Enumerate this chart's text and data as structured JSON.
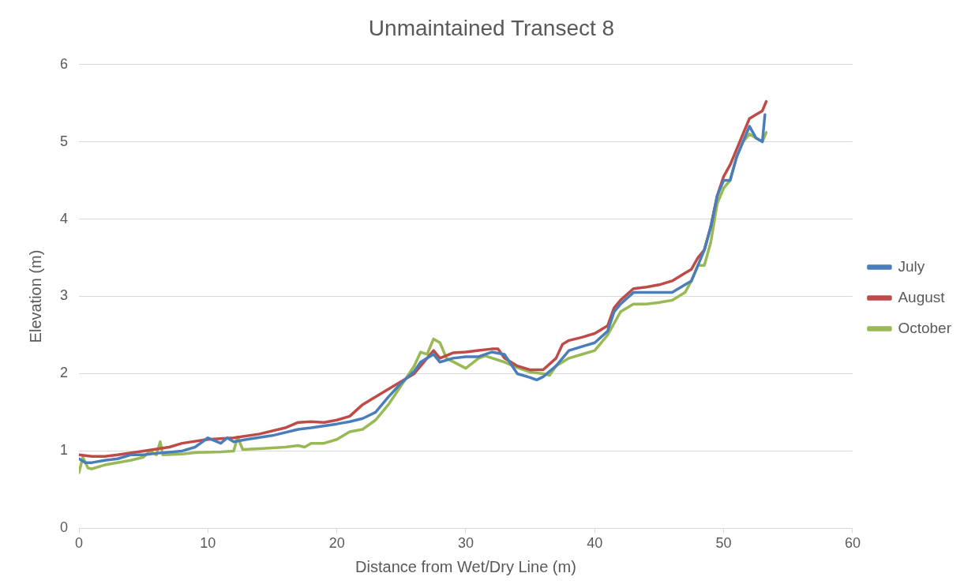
{
  "chart_data": {
    "type": "line",
    "title": "Unmaintained Transect 8",
    "xlabel": "Distance from Wet/Dry Line (m)",
    "ylabel": "Elevation (m)",
    "xlim": [
      0,
      60
    ],
    "xticks": [
      0,
      10,
      20,
      30,
      40,
      50,
      60
    ],
    "ylim": [
      0,
      6
    ],
    "yticks": [
      0,
      1,
      2,
      3,
      4,
      5,
      6
    ],
    "grid": "y",
    "legend": "right",
    "marker": "none",
    "line_style": "solid",
    "series": [
      {
        "name": "July",
        "color": "#4a7ebb",
        "x": [
          0,
          0.5,
          1,
          2,
          3,
          4,
          5,
          6,
          8,
          9,
          10,
          11,
          11.5,
          12,
          13,
          15,
          17,
          18,
          20,
          21,
          22,
          23,
          24,
          25,
          26,
          26.5,
          27,
          27.5,
          28,
          29,
          30,
          31,
          32,
          33,
          34,
          35,
          35.5,
          36,
          37,
          38,
          39,
          40,
          41,
          41.5,
          42,
          43,
          44,
          45,
          46,
          47,
          47.5,
          48,
          48.5,
          49,
          49.5,
          50,
          50.5,
          51,
          51.5,
          52,
          52.5,
          53,
          53.2
        ],
        "values": [
          0.9,
          0.85,
          0.85,
          0.88,
          0.9,
          0.95,
          0.95,
          0.97,
          1.0,
          1.05,
          1.17,
          1.1,
          1.17,
          1.12,
          1.15,
          1.2,
          1.28,
          1.3,
          1.35,
          1.38,
          1.42,
          1.5,
          1.7,
          1.88,
          2.03,
          2.15,
          2.2,
          2.25,
          2.15,
          2.2,
          2.22,
          2.22,
          2.28,
          2.25,
          2.0,
          1.95,
          1.92,
          1.96,
          2.1,
          2.3,
          2.35,
          2.4,
          2.55,
          2.8,
          2.9,
          3.05,
          3.05,
          3.05,
          3.05,
          3.15,
          3.2,
          3.4,
          3.6,
          3.9,
          4.3,
          4.5,
          4.5,
          4.8,
          5.0,
          5.2,
          5.05,
          5.0,
          5.35
        ]
      },
      {
        "name": "August",
        "color": "#be4b48",
        "x": [
          0,
          1,
          2,
          3,
          5,
          7,
          8,
          10,
          12,
          14,
          16,
          17,
          18,
          19,
          20,
          21,
          22,
          24,
          26,
          27,
          27.5,
          28,
          29,
          30,
          31,
          32,
          32.5,
          33,
          34,
          35,
          36,
          37,
          37.5,
          38,
          39,
          40,
          41,
          41.5,
          42,
          43,
          44,
          45,
          46,
          47,
          47.5,
          48,
          48.5,
          49,
          49.5,
          50,
          50.5,
          51,
          51.5,
          52,
          52.5,
          53,
          53.3
        ],
        "values": [
          0.95,
          0.93,
          0.93,
          0.95,
          1.0,
          1.05,
          1.1,
          1.15,
          1.17,
          1.22,
          1.3,
          1.37,
          1.38,
          1.37,
          1.4,
          1.45,
          1.6,
          1.8,
          2.0,
          2.2,
          2.3,
          2.2,
          2.27,
          2.28,
          2.3,
          2.32,
          2.32,
          2.2,
          2.1,
          2.05,
          2.05,
          2.2,
          2.38,
          2.43,
          2.47,
          2.52,
          2.62,
          2.85,
          2.95,
          3.1,
          3.12,
          3.15,
          3.2,
          3.3,
          3.35,
          3.5,
          3.6,
          3.9,
          4.3,
          4.55,
          4.7,
          4.9,
          5.1,
          5.3,
          5.35,
          5.4,
          5.52
        ]
      },
      {
        "name": "October",
        "color": "#98b954",
        "x": [
          0,
          0.3,
          0.7,
          1,
          2,
          4,
          5,
          5.5,
          6,
          6.3,
          6.5,
          8,
          9,
          11,
          12,
          12.3,
          12.7,
          14,
          16,
          17,
          17.5,
          18,
          19,
          20,
          21,
          22,
          23,
          24,
          25,
          26,
          26.5,
          27,
          27.5,
          28,
          28.5,
          30,
          31,
          31.5,
          33,
          34,
          35,
          36,
          36.5,
          37,
          38,
          39,
          40,
          41,
          42,
          43,
          44,
          45,
          46,
          47,
          47.5,
          48,
          48.5,
          49,
          49.5,
          50,
          50.5,
          51,
          51.5,
          52,
          52.5,
          53,
          53.3
        ],
        "values": [
          0.72,
          0.92,
          0.78,
          0.77,
          0.82,
          0.88,
          0.92,
          1.0,
          0.95,
          1.12,
          0.95,
          0.96,
          0.98,
          0.99,
          1.0,
          1.18,
          1.02,
          1.03,
          1.05,
          1.07,
          1.05,
          1.1,
          1.1,
          1.15,
          1.25,
          1.28,
          1.4,
          1.6,
          1.85,
          2.1,
          2.28,
          2.25,
          2.45,
          2.4,
          2.2,
          2.07,
          2.2,
          2.23,
          2.15,
          2.08,
          2.02,
          2.0,
          1.98,
          2.1,
          2.2,
          2.25,
          2.3,
          2.5,
          2.8,
          2.9,
          2.9,
          2.92,
          2.95,
          3.05,
          3.2,
          3.4,
          3.4,
          3.7,
          4.2,
          4.4,
          4.5,
          4.8,
          5.0,
          5.1,
          5.05,
          5.0,
          5.12
        ]
      }
    ]
  }
}
